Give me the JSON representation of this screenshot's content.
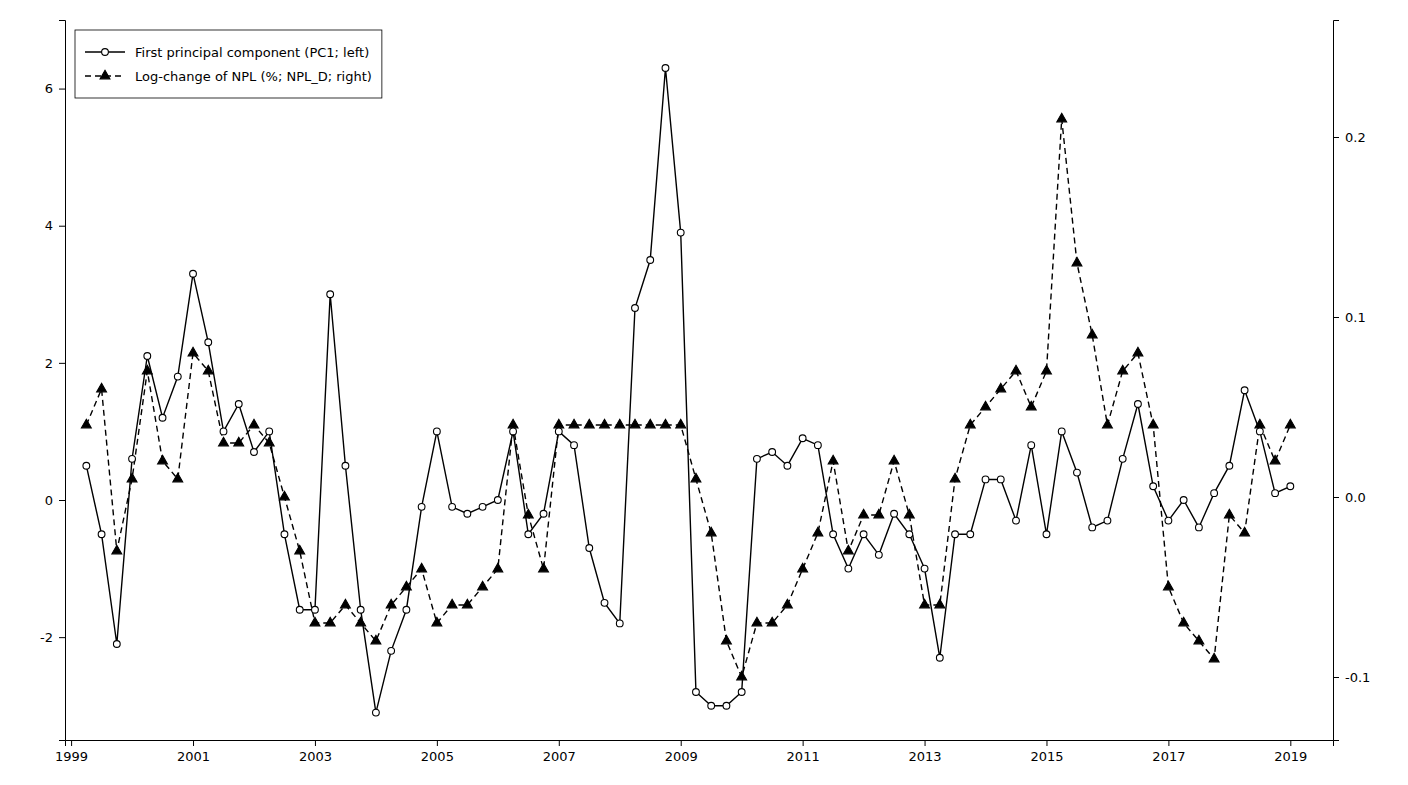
{
  "chart_data": {
    "type": "line",
    "x": [
      1999.25,
      1999.5,
      1999.75,
      2000.0,
      2000.25,
      2000.5,
      2000.75,
      2001.0,
      2001.25,
      2001.5,
      2001.75,
      2002.0,
      2002.25,
      2002.5,
      2002.75,
      2003.0,
      2003.25,
      2003.5,
      2003.75,
      2004.0,
      2004.25,
      2004.5,
      2004.75,
      2005.0,
      2005.25,
      2005.5,
      2005.75,
      2006.0,
      2006.25,
      2006.5,
      2006.75,
      2007.0,
      2007.25,
      2007.5,
      2007.75,
      2008.0,
      2008.25,
      2008.5,
      2008.75,
      2009.0,
      2009.25,
      2009.5,
      2009.75,
      2010.0,
      2010.25,
      2010.5,
      2010.75,
      2011.0,
      2011.25,
      2011.5,
      2011.75,
      2012.0,
      2012.25,
      2012.5,
      2012.75,
      2013.0,
      2013.25,
      2013.5,
      2013.75,
      2014.0,
      2014.25,
      2014.5,
      2014.75,
      2015.0,
      2015.25,
      2015.5,
      2015.75,
      2016.0,
      2016.25,
      2016.5,
      2016.75,
      2017.0,
      2017.25,
      2017.5,
      2017.75,
      2018.0,
      2018.25,
      2018.5,
      2018.75,
      2019.0
    ],
    "series": [
      {
        "name": "First principal component (PC1; left)",
        "color": "#000000",
        "marker": "circle",
        "line_style": "solid",
        "values": [
          0.5,
          -0.5,
          -2.1,
          0.6,
          2.1,
          1.2,
          1.8,
          3.3,
          2.3,
          1.0,
          1.4,
          0.7,
          1.0,
          -0.5,
          -1.6,
          -1.6,
          3.0,
          0.5,
          -1.6,
          -3.1,
          -2.2,
          -1.6,
          -0.1,
          1.0,
          -0.1,
          -0.2,
          -0.1,
          0.0,
          1.0,
          -0.5,
          -0.2,
          1.0,
          0.8,
          -0.7,
          -1.5,
          -1.8,
          2.8,
          3.5,
          6.3,
          3.9,
          -2.8,
          -3.0,
          -3.0,
          -2.8,
          0.6,
          0.7,
          0.5,
          0.9,
          0.8,
          -0.5,
          -1.0,
          -0.5,
          -0.8,
          -0.2,
          -0.5,
          -1.0,
          -2.3,
          -0.5,
          -0.5,
          0.3,
          0.3,
          -0.3,
          0.8,
          -0.5,
          1.0,
          0.4,
          -0.4,
          -0.3,
          0.6,
          1.4,
          0.2,
          -0.3,
          0.0,
          -0.4,
          0.1,
          0.5,
          1.6,
          1.0,
          0.1,
          0.2
        ]
      },
      {
        "name": "Log-change of NPL (%; NPL_D; right)",
        "color": "#000000",
        "marker": "triangle",
        "line_style": "dashed",
        "axis": "y2",
        "values": [
          0.04,
          0.06,
          -0.03,
          0.01,
          0.07,
          0.02,
          0.01,
          0.08,
          0.07,
          0.03,
          0.03,
          0.04,
          0.03,
          0.0,
          -0.03,
          -0.07,
          -0.07,
          -0.06,
          -0.07,
          -0.08,
          -0.06,
          -0.05,
          -0.04,
          -0.07,
          -0.06,
          -0.06,
          -0.05,
          -0.04,
          0.04,
          -0.01,
          -0.04,
          0.04,
          0.04,
          0.04,
          0.04,
          0.04,
          0.04,
          0.04,
          0.04,
          0.04,
          0.01,
          -0.02,
          -0.08,
          -0.1,
          -0.07,
          -0.07,
          -0.06,
          -0.04,
          -0.02,
          0.02,
          -0.03,
          -0.01,
          -0.01,
          0.02,
          -0.01,
          -0.06,
          -0.06,
          0.01,
          0.04,
          0.05,
          0.06,
          0.07,
          0.05,
          0.07,
          0.21,
          0.13,
          0.09,
          0.04,
          0.07,
          0.08,
          0.04,
          -0.05,
          -0.07,
          -0.08,
          -0.09,
          -0.01,
          -0.02,
          0.04,
          0.02,
          0.04
        ]
      }
    ],
    "xlim": [
      1998.9,
      2019.7
    ],
    "xticks": [
      1999,
      2001,
      2003,
      2005,
      2007,
      2009,
      2011,
      2013,
      2015,
      2017,
      2019
    ],
    "ylim": [
      -3.5,
      7.0
    ],
    "yticks": [
      -2,
      0,
      2,
      4,
      6
    ],
    "y2lim": [
      -0.135,
      0.265
    ],
    "y2ticks": [
      -0.1,
      {
        "value": 0.0,
        "label": "0.0"
      },
      0.1,
      0.2
    ],
    "legend": "upper left",
    "grid": false
  }
}
